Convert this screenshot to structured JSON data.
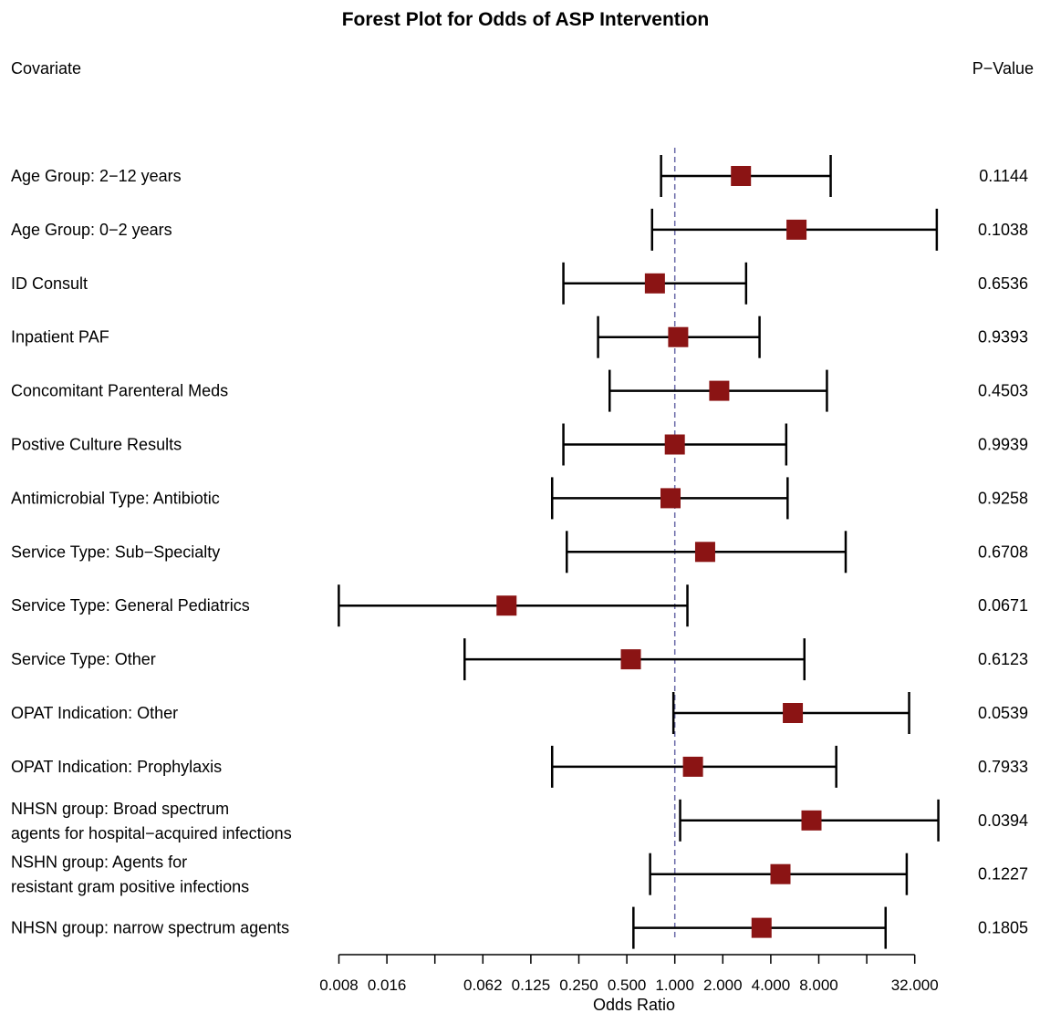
{
  "chart_data": {
    "type": "forest",
    "title": "Forest Plot for Odds of ASP Intervention",
    "left_header": "Covariate",
    "right_header": "P−Value",
    "xlabel": "Odds Ratio",
    "x_scale": "log2",
    "xlim": [
      0.008,
      32
    ],
    "ticks": [
      0.0078125,
      0.015625,
      0.03125,
      0.0625,
      0.125,
      0.25,
      0.5,
      1,
      2,
      4,
      8,
      16,
      32
    ],
    "tick_labels": [
      "0.008",
      "0.016",
      "",
      "0.062",
      "0.125",
      "0.250",
      "0.500",
      "1.000",
      "2.000",
      "4.000",
      "8.000",
      "",
      "32.000"
    ],
    "reference_line": 1,
    "reference_line_color": "#6a6aa8",
    "marker_color": "#8b1414",
    "rows": [
      {
        "label": [
          "Age Group: 2−12 years"
        ],
        "or": 2.6,
        "lo": 0.82,
        "hi": 9.5,
        "p": "0.1144"
      },
      {
        "label": [
          "Age Group: 0−2 years"
        ],
        "or": 5.8,
        "lo": 0.72,
        "hi": 44,
        "p": "0.1038"
      },
      {
        "label": [
          "ID Consult"
        ],
        "or": 0.75,
        "lo": 0.2,
        "hi": 2.8,
        "p": "0.6536"
      },
      {
        "label": [
          "Inpatient PAF"
        ],
        "or": 1.05,
        "lo": 0.33,
        "hi": 3.4,
        "p": "0.9393"
      },
      {
        "label": [
          "Concomitant Parenteral Meds"
        ],
        "or": 1.9,
        "lo": 0.39,
        "hi": 9.0,
        "p": "0.4503"
      },
      {
        "label": [
          "Postive Culture Results"
        ],
        "or": 1.0,
        "lo": 0.2,
        "hi": 5.0,
        "p": "0.9939"
      },
      {
        "label": [
          "Antimicrobial Type: Antibiotic"
        ],
        "or": 0.94,
        "lo": 0.17,
        "hi": 5.1,
        "p": "0.9258"
      },
      {
        "label": [
          "Service Type: Sub−Specialty"
        ],
        "or": 1.55,
        "lo": 0.21,
        "hi": 11.8,
        "p": "0.6708"
      },
      {
        "label": [
          "Service Type: General Pediatrics"
        ],
        "or": 0.088,
        "lo": 0.0078,
        "hi": 1.2,
        "p": "0.0671"
      },
      {
        "label": [
          "Service Type: Other"
        ],
        "or": 0.53,
        "lo": 0.048,
        "hi": 6.5,
        "p": "0.6123"
      },
      {
        "label": [
          "OPAT Indication: Other"
        ],
        "or": 5.5,
        "lo": 0.98,
        "hi": 29.5,
        "p": "0.0539"
      },
      {
        "label": [
          "OPAT Indication: Prophylaxis"
        ],
        "or": 1.3,
        "lo": 0.17,
        "hi": 10.3,
        "p": "0.7933"
      },
      {
        "label": [
          "NHSN group: Broad spectrum",
          "agents for hospital−acquired infections"
        ],
        "or": 7.2,
        "lo": 1.08,
        "hi": 45,
        "p": "0.0394"
      },
      {
        "label": [
          "NSHN group: Agents for",
          "resistant gram positive infections"
        ],
        "or": 4.6,
        "lo": 0.7,
        "hi": 28.5,
        "p": "0.1227"
      },
      {
        "label": [
          "NHSN group: narrow spectrum agents"
        ],
        "or": 3.5,
        "lo": 0.55,
        "hi": 21,
        "p": "0.1805"
      }
    ]
  }
}
